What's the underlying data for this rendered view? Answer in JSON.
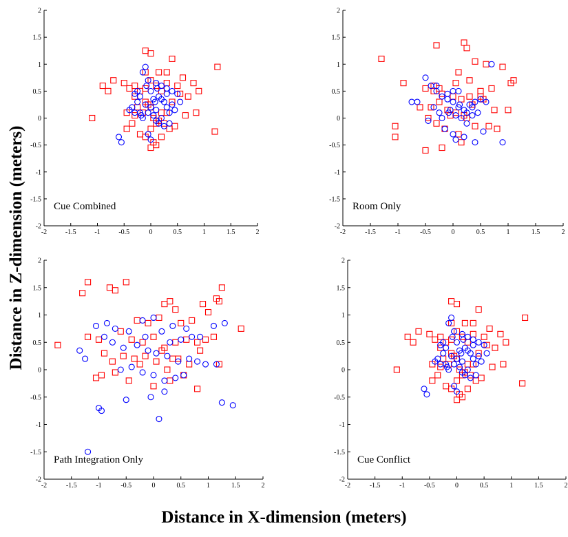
{
  "figure": {
    "xlabel": "Distance in X-dimension (meters)",
    "ylabel": "Distance in Z-dimension (meters)"
  },
  "chart_data": [
    {
      "type": "scatter",
      "title": "Cue Combined",
      "xlim": [
        -2,
        2
      ],
      "ylim": [
        -2,
        2
      ],
      "xticks": [
        "-2",
        "-1.5",
        "-1",
        "-0.5",
        "0",
        "0.5",
        "1",
        "1.5",
        "2"
      ],
      "yticks": [
        "-2",
        "-1.5",
        "-1",
        "-0.5",
        "0",
        "0.5",
        "1",
        "1.5",
        "2"
      ],
      "grid": false,
      "series": [
        {
          "marker": "square",
          "color": "#ff0000",
          "x": [
            -0.1,
            0.0,
            -0.3,
            -0.1,
            0.5,
            0.4,
            0.6,
            -0.9,
            -0.5,
            -0.4,
            -0.2,
            0.0,
            0.1,
            0.3,
            0.2,
            -0.3,
            -0.1,
            0.0,
            0.2,
            0.4,
            0.8,
            0.9,
            0.7,
            -0.7,
            -0.8,
            -1.1,
            -0.45,
            -0.3,
            -0.15,
            0.05,
            0.15,
            0.3,
            0.1,
            0.0,
            -0.2,
            -0.1,
            0.25,
            0.45,
            0.65,
            0.85,
            1.25,
            1.2,
            0.05,
            0.1,
            0.2,
            0.35,
            -0.05,
            -0.25,
            -0.35,
            -0.45,
            0.55,
            0.0,
            -0.1,
            0.15,
            0.3
          ],
          "y": [
            1.25,
            1.2,
            0.6,
            0.85,
            0.6,
            1.1,
            0.75,
            0.6,
            0.65,
            0.55,
            0.5,
            0.7,
            0.6,
            0.65,
            0.5,
            0.4,
            0.3,
            0.2,
            0.1,
            0.3,
            0.65,
            0.5,
            0.4,
            0.7,
            0.5,
            0.0,
            0.1,
            0.05,
            0.1,
            0.0,
            -0.05,
            0.1,
            -0.1,
            -0.2,
            -0.3,
            -0.35,
            -0.1,
            -0.15,
            0.05,
            0.1,
            0.95,
            -0.25,
            -0.45,
            -0.5,
            -0.35,
            -0.2,
            0.25,
            0.2,
            -0.1,
            -0.2,
            0.45,
            -0.55,
            0.55,
            0.85,
            0.85
          ]
        },
        {
          "marker": "circle",
          "color": "#0000ff",
          "x": [
            -0.1,
            -0.15,
            -0.05,
            0.1,
            0.2,
            0.3,
            0.4,
            0.5,
            -0.3,
            -0.2,
            0.0,
            0.05,
            0.15,
            0.25,
            -0.25,
            -0.35,
            -0.1,
            0.0,
            0.1,
            0.3,
            0.35,
            -0.05,
            0.05,
            -0.2,
            -0.15,
            0.2,
            0.45,
            0.55,
            -0.6,
            -0.55,
            -0.4,
            -0.3,
            0.1,
            0.15,
            -0.05,
            0.0,
            0.25,
            0.35,
            0.12,
            -0.08,
            0.2,
            0.3,
            -0.25,
            -0.18,
            0.08,
            0.4
          ],
          "y": [
            0.95,
            0.85,
            0.7,
            0.65,
            0.6,
            0.55,
            0.5,
            0.45,
            0.45,
            0.4,
            0.5,
            0.35,
            0.4,
            0.3,
            0.3,
            0.2,
            0.25,
            0.2,
            0.15,
            0.2,
            0.1,
            0.1,
            0.05,
            0.1,
            0.0,
            0.0,
            0.15,
            0.3,
            -0.35,
            -0.45,
            0.15,
            0.1,
            -0.05,
            -0.1,
            -0.3,
            -0.4,
            -0.15,
            -0.1,
            0.55,
            0.6,
            0.35,
            0.45,
            0.5,
            0.05,
            0.3,
            0.25
          ]
        }
      ]
    },
    {
      "type": "scatter",
      "title": "Room Only",
      "xlim": [
        -2,
        2
      ],
      "ylim": [
        -2,
        2
      ],
      "xticks": [
        "-2",
        "-1.5",
        "-1",
        "-0.5",
        "0",
        "0.5",
        "1",
        "1.5",
        "2"
      ],
      "yticks": [
        "-2",
        "-1.5",
        "-1",
        "-0.5",
        "0",
        "0.5",
        "1",
        "1.5",
        "2"
      ],
      "grid": false,
      "series": [
        {
          "marker": "square",
          "color": "#ff0000",
          "x": [
            -1.3,
            -0.3,
            0.2,
            0.25,
            0.1,
            0.4,
            0.9,
            0.6,
            -0.9,
            -0.5,
            -0.35,
            -0.2,
            0.0,
            0.15,
            0.3,
            0.5,
            0.7,
            -1.05,
            -1.05,
            -0.6,
            -0.4,
            -0.25,
            -0.1,
            0.05,
            0.2,
            0.35,
            0.55,
            0.75,
            1.0,
            1.05,
            1.1,
            -0.45,
            -0.3,
            -0.15,
            0.1,
            0.25,
            0.4,
            0.65,
            0.8,
            0.05,
            -0.2,
            -0.35,
            0.15,
            -0.05,
            0.3,
            0.5,
            -0.5,
            -0.25
          ],
          "y": [
            1.1,
            1.35,
            1.4,
            1.3,
            0.85,
            1.05,
            0.95,
            1.0,
            0.65,
            0.55,
            0.6,
            0.45,
            0.4,
            0.35,
            0.4,
            0.5,
            0.55,
            -0.15,
            -0.35,
            0.2,
            0.2,
            0.3,
            0.15,
            0.1,
            0.05,
            0.25,
            0.35,
            0.15,
            0.15,
            0.65,
            0.7,
            0.0,
            -0.1,
            -0.2,
            -0.3,
            0.0,
            -0.15,
            -0.15,
            -0.2,
            0.65,
            -0.55,
            0.5,
            -0.45,
            0.05,
            0.7,
            0.4,
            -0.6,
            0.55
          ]
        },
        {
          "marker": "circle",
          "color": "#0000ff",
          "x": [
            -0.5,
            -0.4,
            -0.3,
            -0.2,
            -0.1,
            0.0,
            0.1,
            0.2,
            0.3,
            0.4,
            0.5,
            0.6,
            0.7,
            -0.75,
            -0.65,
            -0.35,
            -0.25,
            -0.05,
            0.05,
            0.15,
            0.25,
            0.35,
            0.45,
            -0.45,
            -0.15,
            0.0,
            0.2,
            0.4,
            0.9,
            -0.3,
            -0.1,
            0.1,
            0.25,
            0.55,
            0.05,
            -0.2,
            0.35,
            0.12,
            0.0,
            -0.08
          ],
          "y": [
            0.75,
            0.6,
            0.5,
            0.4,
            0.35,
            0.3,
            0.2,
            0.15,
            0.25,
            0.3,
            0.35,
            0.3,
            1.0,
            0.3,
            0.3,
            0.2,
            0.1,
            0.15,
            0.05,
            0.0,
            -0.1,
            0.05,
            0.1,
            -0.05,
            -0.2,
            -0.3,
            -0.35,
            -0.45,
            -0.45,
            0.6,
            0.45,
            0.5,
            0.1,
            -0.25,
            -0.4,
            0.0,
            0.2,
            0.25,
            0.5,
            0.1
          ]
        }
      ]
    },
    {
      "type": "scatter",
      "title": "Path Integration Only",
      "xlim": [
        -2,
        2
      ],
      "ylim": [
        -2,
        2
      ],
      "xticks": [
        "-2",
        "-1.5",
        "-1",
        "-0.5",
        "0",
        "0.5",
        "1",
        "1.5",
        "2"
      ],
      "yticks": [
        "-2",
        "-1.5",
        "-1",
        "-0.5",
        "0",
        "0.5",
        "1",
        "1.5",
        "2"
      ],
      "grid": false,
      "series": [
        {
          "marker": "square",
          "color": "#ff0000",
          "x": [
            -1.2,
            -1.3,
            -0.8,
            -0.5,
            -0.7,
            0.3,
            0.2,
            0.4,
            0.9,
            1.15,
            1.2,
            1.25,
            1.0,
            1.6,
            -0.3,
            -0.1,
            0.1,
            0.5,
            0.7,
            -1.75,
            -1.2,
            -1.0,
            -0.6,
            -0.4,
            -0.2,
            0.0,
            0.2,
            0.4,
            0.6,
            0.8,
            0.95,
            1.1,
            -0.9,
            -0.75,
            -0.55,
            -0.35,
            -0.15,
            0.05,
            0.25,
            0.45,
            0.65,
            0.85,
            -1.05,
            -0.95,
            -0.7,
            -0.45,
            0.0,
            0.3,
            0.55,
            0.8,
            1.2,
            -0.25,
            0.15,
            0.35
          ],
          "y": [
            1.6,
            1.4,
            1.5,
            1.6,
            1.45,
            1.25,
            1.2,
            1.1,
            1.2,
            1.3,
            1.25,
            1.5,
            1.05,
            0.75,
            0.9,
            0.85,
            0.95,
            0.85,
            0.9,
            0.45,
            0.6,
            0.55,
            0.7,
            0.55,
            0.5,
            0.6,
            0.4,
            0.5,
            0.55,
            0.5,
            0.55,
            0.6,
            0.3,
            0.15,
            0.25,
            0.2,
            0.25,
            0.15,
            0.0,
            0.2,
            0.1,
            0.35,
            -0.15,
            -0.1,
            -0.05,
            -0.2,
            -0.3,
            -0.2,
            -0.1,
            -0.35,
            0.1,
            0.1,
            0.35,
            0.2
          ]
        },
        {
          "marker": "circle",
          "color": "#0000ff",
          "x": [
            -1.05,
            -0.85,
            -0.7,
            -0.45,
            -0.2,
            0.0,
            0.15,
            0.35,
            0.6,
            0.85,
            1.1,
            1.3,
            -1.35,
            -1.25,
            -0.9,
            -0.75,
            -0.55,
            -0.3,
            -0.1,
            0.05,
            0.25,
            0.45,
            0.65,
            0.8,
            0.95,
            1.15,
            -0.6,
            -0.4,
            -0.2,
            0.0,
            0.2,
            0.4,
            0.55,
            -0.5,
            -0.05,
            0.2,
            0.1,
            1.25,
            1.45,
            -1.0,
            -0.95,
            -1.2,
            0.3,
            0.5,
            0.7,
            -0.15
          ],
          "y": [
            0.8,
            0.85,
            0.75,
            0.7,
            0.9,
            0.95,
            0.7,
            0.8,
            0.75,
            0.6,
            0.8,
            0.85,
            0.35,
            0.2,
            0.6,
            0.5,
            0.4,
            0.45,
            0.35,
            0.3,
            0.25,
            0.15,
            0.2,
            0.15,
            0.1,
            0.1,
            0.0,
            0.05,
            -0.05,
            -0.1,
            -0.2,
            -0.15,
            -0.1,
            -0.55,
            -0.5,
            -0.4,
            -0.9,
            -0.6,
            -0.65,
            -0.7,
            -0.75,
            -1.5,
            0.5,
            0.55,
            0.6,
            0.6
          ]
        }
      ]
    },
    {
      "type": "scatter",
      "title": "Cue Conflict",
      "xlim": [
        -2,
        2
      ],
      "ylim": [
        -2,
        2
      ],
      "xticks": [
        "-2",
        "-1.5",
        "-1",
        "-0.5",
        "0",
        "0.5",
        "1",
        "1.5",
        "2"
      ],
      "yticks": [
        "-2",
        "-1.5",
        "-1",
        "-0.5",
        "0",
        "0.5",
        "1",
        "1.5",
        "2"
      ],
      "grid": false,
      "series": [
        {
          "marker": "square",
          "color": "#ff0000",
          "x": [
            -0.1,
            0.0,
            -0.3,
            -0.1,
            0.5,
            0.4,
            0.6,
            -0.9,
            -0.5,
            -0.4,
            -0.2,
            0.0,
            0.1,
            0.3,
            0.2,
            -0.3,
            -0.1,
            0.0,
            0.2,
            0.4,
            0.8,
            0.9,
            0.7,
            -0.7,
            -0.8,
            -1.1,
            -0.45,
            -0.3,
            -0.15,
            0.05,
            0.15,
            0.3,
            0.1,
            0.0,
            -0.2,
            -0.1,
            0.25,
            0.45,
            0.65,
            0.85,
            1.25,
            1.2,
            0.05,
            0.1,
            0.2,
            0.35,
            -0.05,
            -0.25,
            -0.35,
            -0.45,
            0.55,
            0.0,
            -0.1,
            0.15,
            0.3
          ],
          "y": [
            1.25,
            1.2,
            0.6,
            0.85,
            0.6,
            1.1,
            0.75,
            0.6,
            0.65,
            0.55,
            0.5,
            0.7,
            0.6,
            0.65,
            0.5,
            0.4,
            0.3,
            0.2,
            0.1,
            0.3,
            0.65,
            0.5,
            0.4,
            0.7,
            0.5,
            0.0,
            0.1,
            0.05,
            0.1,
            0.0,
            -0.05,
            0.1,
            -0.1,
            -0.2,
            -0.3,
            -0.35,
            -0.1,
            -0.15,
            0.05,
            0.1,
            0.95,
            -0.25,
            -0.45,
            -0.5,
            -0.35,
            -0.2,
            0.25,
            0.2,
            -0.1,
            -0.2,
            0.45,
            -0.55,
            0.55,
            0.85,
            0.85
          ]
        },
        {
          "marker": "circle",
          "color": "#0000ff",
          "x": [
            -0.1,
            -0.15,
            -0.05,
            0.1,
            0.2,
            0.3,
            0.4,
            0.5,
            -0.3,
            -0.2,
            0.0,
            0.05,
            0.15,
            0.25,
            -0.25,
            -0.35,
            -0.1,
            0.0,
            0.1,
            0.3,
            0.35,
            -0.05,
            0.05,
            -0.2,
            -0.15,
            0.2,
            0.45,
            0.55,
            -0.6,
            -0.55,
            -0.4,
            -0.3,
            0.1,
            0.15,
            -0.05,
            0.0,
            0.25,
            0.35,
            0.12,
            -0.08,
            0.2,
            0.3,
            -0.25,
            -0.18,
            0.08,
            0.4
          ],
          "y": [
            0.95,
            0.85,
            0.7,
            0.65,
            0.6,
            0.55,
            0.5,
            0.45,
            0.45,
            0.4,
            0.5,
            0.35,
            0.4,
            0.3,
            0.3,
            0.2,
            0.25,
            0.2,
            0.15,
            0.2,
            0.1,
            0.1,
            0.05,
            0.1,
            0.0,
            0.0,
            0.15,
            0.3,
            -0.35,
            -0.45,
            0.15,
            0.1,
            -0.05,
            -0.1,
            -0.3,
            -0.4,
            -0.15,
            -0.1,
            0.55,
            0.6,
            0.35,
            0.45,
            0.5,
            0.05,
            0.3,
            0.25
          ]
        }
      ]
    }
  ]
}
